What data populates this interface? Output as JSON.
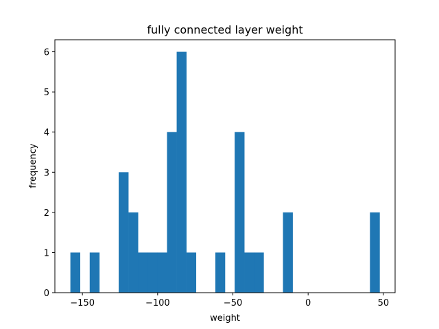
{
  "chart_data": {
    "type": "bar",
    "subtype": "histogram",
    "title": "fully connected layer weight",
    "xlabel": "weight",
    "ylabel": "frequency",
    "range": [
      -158.0,
      47.5
    ],
    "bins": 32,
    "counts": [
      1,
      0,
      1,
      0,
      0,
      3,
      2,
      1,
      1,
      1,
      4,
      6,
      1,
      0,
      0,
      1,
      0,
      4,
      1,
      1,
      0,
      0,
      2,
      0,
      0,
      0,
      0,
      0,
      0,
      0,
      0,
      2
    ],
    "xlim": [
      -168.3,
      57.8
    ],
    "ylim": [
      0,
      6.3
    ],
    "xticks": [
      -150,
      -100,
      -50,
      0,
      50
    ],
    "xtick_labels": [
      "−150",
      "−100",
      "−50",
      "0",
      "50"
    ],
    "yticks": [
      0,
      1,
      2,
      3,
      4,
      5,
      6
    ],
    "ytick_labels": [
      "0",
      "1",
      "2",
      "3",
      "4",
      "5",
      "6"
    ],
    "bar_color": "#1f77b4",
    "grid": false
  }
}
